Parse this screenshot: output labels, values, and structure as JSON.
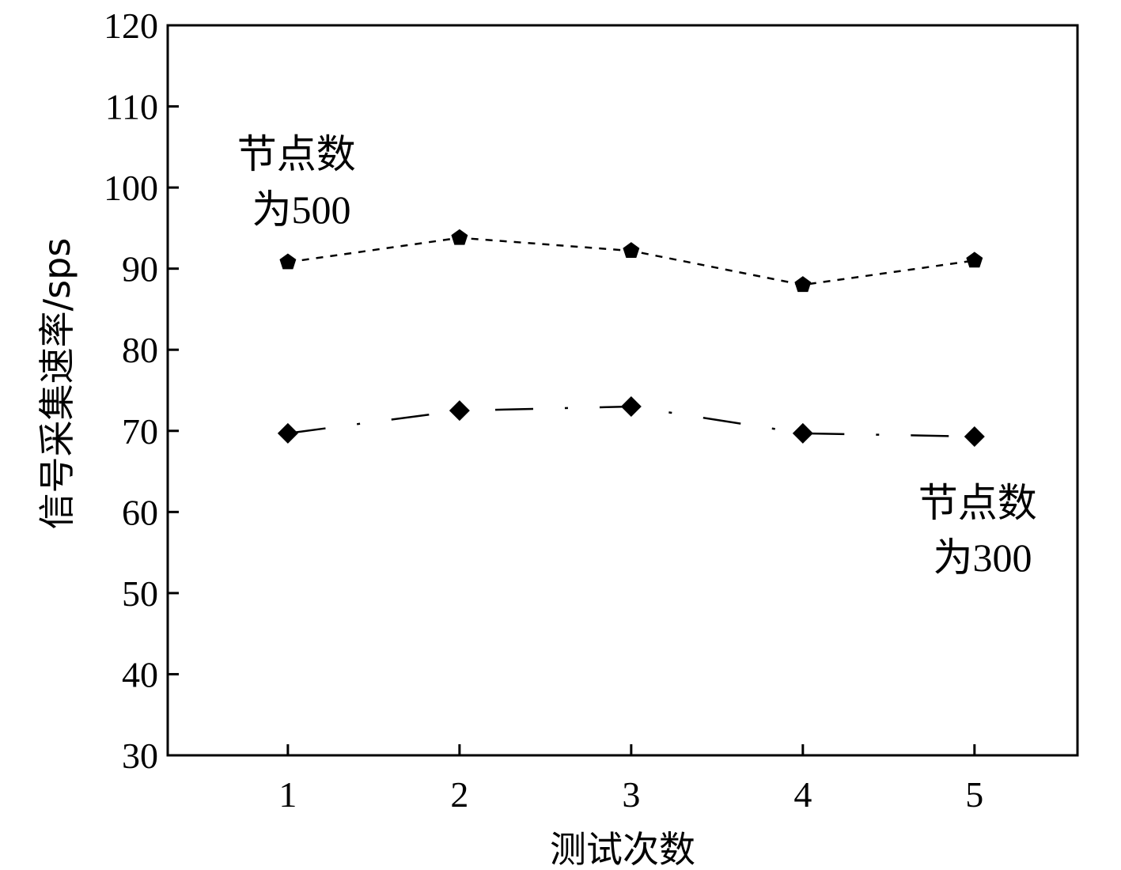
{
  "chart_data": {
    "type": "line",
    "xlabel": "测试次数",
    "ylabel": "信号采集速率/sps",
    "x": [
      1,
      2,
      3,
      4,
      5
    ],
    "xlim": [
      0.3,
      5.6
    ],
    "ylim": [
      30,
      120
    ],
    "yticks": [
      30,
      40,
      50,
      60,
      70,
      80,
      90,
      100,
      110,
      120
    ],
    "grid": false,
    "series": [
      {
        "values": [
          90.8,
          93.8,
          92.2,
          88.0,
          91.0
        ],
        "marker": "pentagon",
        "line_style": "dashed",
        "color": "#000000"
      },
      {
        "values": [
          69.7,
          72.5,
          73.0,
          69.7,
          69.3
        ],
        "marker": "diamond",
        "line_style": "dash-dot",
        "color": "#000000"
      }
    ],
    "annotations": [
      {
        "lines": [
          "节点数",
          "为500"
        ]
      },
      {
        "lines": [
          "节点数",
          "为300"
        ]
      }
    ]
  }
}
